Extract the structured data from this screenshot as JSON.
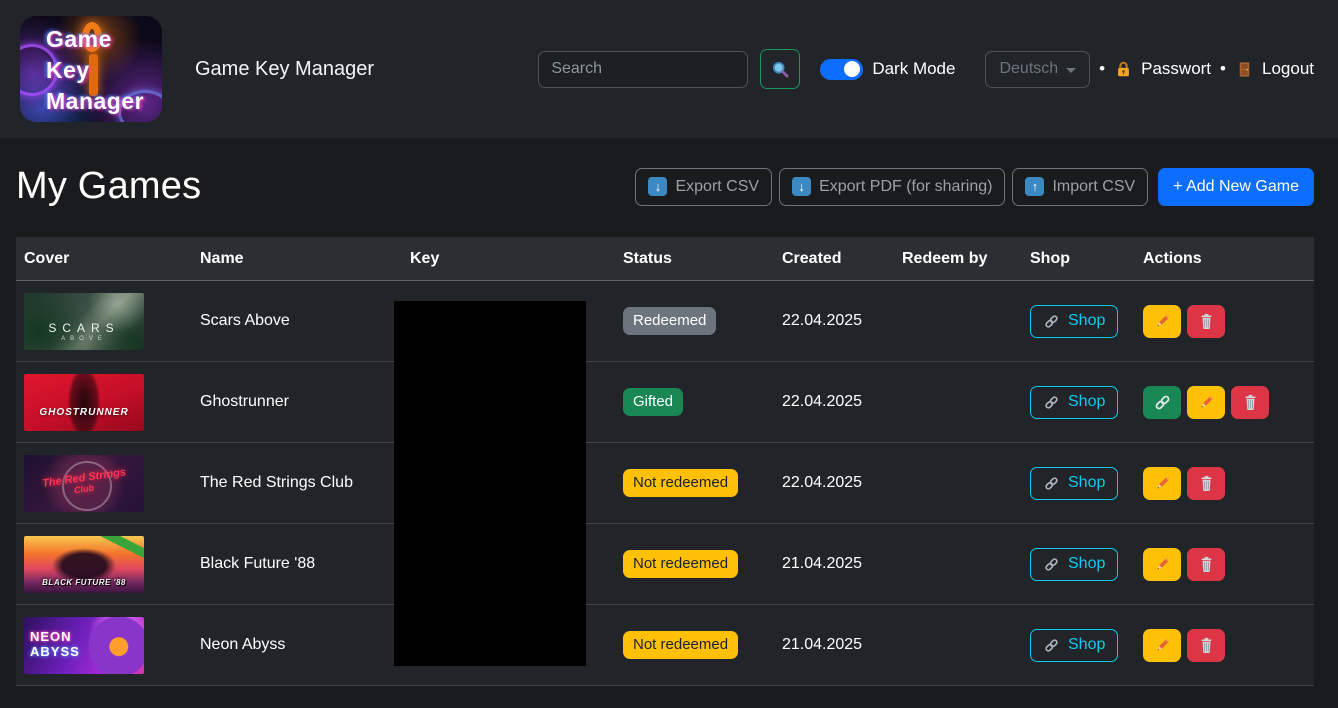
{
  "navbar": {
    "title": "Game Key Manager",
    "logo_lines": [
      "Game",
      "Key",
      "Manager"
    ],
    "search_placeholder": "Search",
    "dark_mode_label": "Dark Mode",
    "dark_mode_on": true,
    "language_selected": "Deutsch",
    "separator": "•",
    "password_label": "Passwort",
    "logout_label": "Logout"
  },
  "page": {
    "heading": "My Games",
    "toolbar": {
      "export_csv": "Export CSV",
      "export_pdf": "Export PDF (for sharing)",
      "import_csv": "Import CSV",
      "add_new": "+ Add New Game",
      "download_glyph": "↓",
      "upload_glyph": "↑"
    }
  },
  "table": {
    "columns": [
      "Cover",
      "Name",
      "Key",
      "Status",
      "Created",
      "Redeem by",
      "Shop",
      "Actions"
    ],
    "key_redacted": true,
    "rows": [
      {
        "name": "Scars Above",
        "art": "scars",
        "cover_text": [
          "SCARS",
          "ABOVE"
        ],
        "status": "Redeemed",
        "status_variant": "secondary",
        "created": "22.04.2025",
        "redeem_by": "",
        "shop_label": "Shop",
        "actions": [
          "edit",
          "delete"
        ]
      },
      {
        "name": "Ghostrunner",
        "art": "ghostrunner",
        "cover_text": [
          "GHOSTRUNNER",
          ""
        ],
        "status": "Gifted",
        "status_variant": "success",
        "created": "22.04.2025",
        "redeem_by": "",
        "shop_label": "Shop",
        "actions": [
          "link",
          "edit",
          "delete"
        ]
      },
      {
        "name": "The Red Strings Club",
        "art": "redstrings",
        "cover_text": [
          "The Red Strings",
          "Club"
        ],
        "status": "Not redeemed",
        "status_variant": "warning",
        "created": "22.04.2025",
        "redeem_by": "",
        "shop_label": "Shop",
        "actions": [
          "edit",
          "delete"
        ]
      },
      {
        "name": "Black Future '88",
        "art": "blackfuture",
        "cover_text": [
          "",
          "BLACK FUTURE '88"
        ],
        "status": "Not redeemed",
        "status_variant": "warning",
        "created": "21.04.2025",
        "redeem_by": "",
        "shop_label": "Shop",
        "actions": [
          "edit",
          "delete"
        ]
      },
      {
        "name": "Neon Abyss",
        "art": "neonabyss",
        "cover_text": [
          "NEON",
          "ABYSS"
        ],
        "status": "Not redeemed",
        "status_variant": "warning",
        "created": "21.04.2025",
        "redeem_by": "",
        "shop_label": "Shop",
        "actions": [
          "edit",
          "delete"
        ]
      }
    ]
  },
  "colors": {
    "primary": "#0d6efd",
    "info": "#0dcaf0",
    "warning": "#ffc107",
    "danger": "#dc3545",
    "success": "#198754",
    "secondary": "#6c757d",
    "navbar_bg": "#212529",
    "body_bg": "#1a1b1d",
    "row_bg": "#212529",
    "header_bg": "#2b2f33"
  }
}
